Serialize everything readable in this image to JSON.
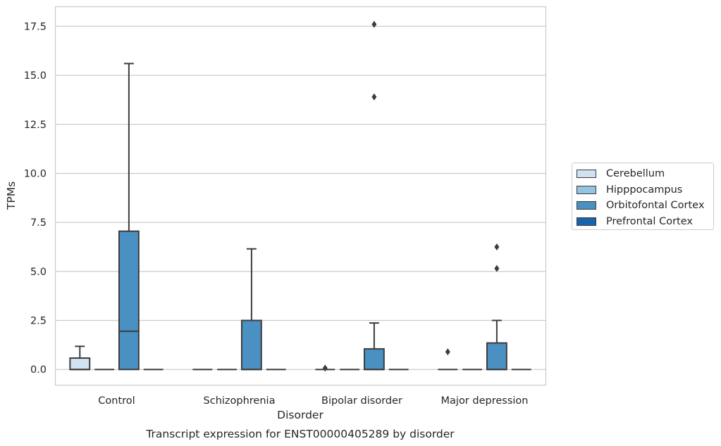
{
  "chart_data": {
    "type": "box",
    "title": "Transcript expression for ENST00000405289 by disorder",
    "xlabel": "Disorder",
    "ylabel": "TPMs",
    "ylim": [
      -0.8,
      18.5
    ],
    "yticks": [
      "0.0",
      "2.5",
      "5.0",
      "7.5",
      "10.0",
      "12.5",
      "15.0",
      "17.5"
    ],
    "grid": "horizontal",
    "legend_placement": "right",
    "categories": [
      "Control",
      "Schizophrenia",
      "Bipolar disorder",
      "Major depression"
    ],
    "series": [
      {
        "name": "Cerebellum",
        "color": "#d0e1f2",
        "boxes": [
          {
            "category": "Control",
            "min": 0,
            "q1": 0,
            "median": 0,
            "q3": 0.58,
            "max": 1.18,
            "outliers": []
          },
          {
            "category": "Schizophrenia",
            "min": 0,
            "q1": 0,
            "median": 0,
            "q3": 0,
            "max": 0,
            "outliers": []
          },
          {
            "category": "Bipolar disorder",
            "min": 0,
            "q1": 0,
            "median": 0,
            "q3": 0,
            "max": 0,
            "outliers": [
              0.07
            ]
          },
          {
            "category": "Major depression",
            "min": 0,
            "q1": 0,
            "median": 0,
            "q3": 0,
            "max": 0,
            "outliers": [
              0.9
            ]
          }
        ]
      },
      {
        "name": "Hipppocampus",
        "color": "#94c4df",
        "boxes": [
          {
            "category": "Control",
            "min": 0,
            "q1": 0,
            "median": 0,
            "q3": 0,
            "max": 0,
            "outliers": []
          },
          {
            "category": "Schizophrenia",
            "min": 0,
            "q1": 0,
            "median": 0,
            "q3": 0,
            "max": 0,
            "outliers": []
          },
          {
            "category": "Bipolar disorder",
            "min": 0,
            "q1": 0,
            "median": 0,
            "q3": 0,
            "max": 0,
            "outliers": []
          },
          {
            "category": "Major depression",
            "min": 0,
            "q1": 0,
            "median": 0,
            "q3": 0,
            "max": 0,
            "outliers": []
          }
        ]
      },
      {
        "name": "Orbitofontal Cortex",
        "color": "#4a90c2",
        "boxes": [
          {
            "category": "Control",
            "min": 0,
            "q1": 0,
            "median": 1.95,
            "q3": 7.05,
            "max": 15.6,
            "outliers": []
          },
          {
            "category": "Schizophrenia",
            "min": 0,
            "q1": 0,
            "median": 0,
            "q3": 2.5,
            "max": 6.15,
            "outliers": []
          },
          {
            "category": "Bipolar disorder",
            "min": 0,
            "q1": 0,
            "median": 0,
            "q3": 1.05,
            "max": 2.37,
            "outliers": [
              13.9,
              17.6
            ]
          },
          {
            "category": "Major depression",
            "min": 0,
            "q1": 0,
            "median": 0,
            "q3": 1.35,
            "max": 2.5,
            "outliers": [
              5.15,
              6.25
            ]
          }
        ]
      },
      {
        "name": "Prefrontal Cortex",
        "color": "#1764ab",
        "boxes": [
          {
            "category": "Control",
            "min": 0,
            "q1": 0,
            "median": 0,
            "q3": 0,
            "max": 0,
            "outliers": []
          },
          {
            "category": "Schizophrenia",
            "min": 0,
            "q1": 0,
            "median": 0,
            "q3": 0,
            "max": 0,
            "outliers": []
          },
          {
            "category": "Bipolar disorder",
            "min": 0,
            "q1": 0,
            "median": 0,
            "q3": 0,
            "max": 0,
            "outliers": []
          },
          {
            "category": "Major depression",
            "min": 0,
            "q1": 0,
            "median": 0,
            "q3": 0,
            "max": 0,
            "outliers": []
          }
        ]
      }
    ]
  }
}
